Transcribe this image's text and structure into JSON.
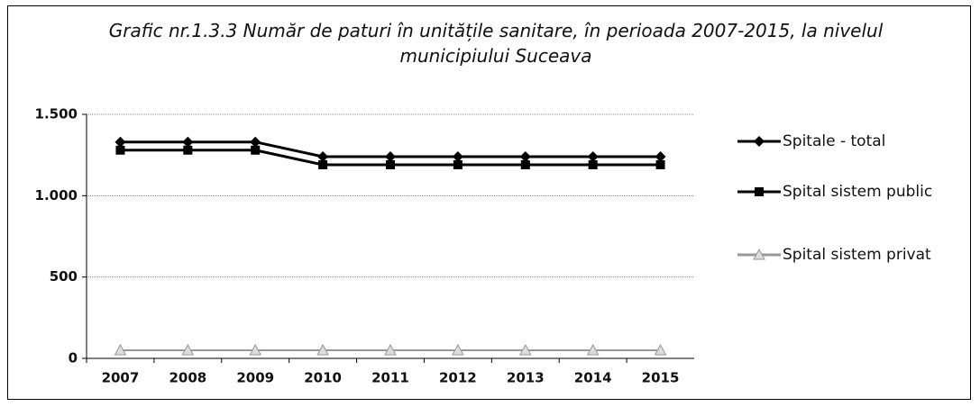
{
  "chart_data": {
    "type": "line",
    "title": "Grafic nr.1.3.3 Număr de paturi în unitățile sanitare, în perioada 2007-2015, la nivelul municipiului Suceava",
    "categories": [
      "2007",
      "2008",
      "2009",
      "2010",
      "2011",
      "2012",
      "2013",
      "2014",
      "2015"
    ],
    "series": [
      {
        "name": "Spitale - total",
        "color": "#000000",
        "marker": "diamond",
        "values": [
          1330,
          1330,
          1330,
          1240,
          1240,
          1240,
          1240,
          1240,
          1240
        ]
      },
      {
        "name": "Spital sistem public",
        "color": "#000000",
        "marker": "square",
        "values": [
          1280,
          1280,
          1280,
          1190,
          1190,
          1190,
          1190,
          1190,
          1190
        ]
      },
      {
        "name": "Spital sistem privat",
        "color": "#999999",
        "marker": "triangle",
        "values": [
          50,
          50,
          50,
          50,
          50,
          50,
          50,
          50,
          50
        ]
      }
    ],
    "ylim": [
      0,
      1500
    ],
    "yticks": [
      0,
      500,
      {
        "value": 1000,
        "label": "1.000"
      },
      {
        "value": 1500,
        "label": "1.500"
      }
    ],
    "grid": true,
    "legend": "right"
  }
}
